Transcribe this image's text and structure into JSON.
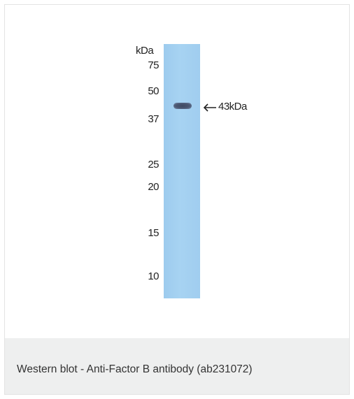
{
  "figure": {
    "unit_label": "kDa",
    "markers": [
      "75",
      "50",
      "37",
      "25",
      "20",
      "15",
      "10"
    ],
    "band_label": "43kDa"
  },
  "caption": {
    "text": "Western blot - Anti-Factor B antibody (ab231072)"
  },
  "colors": {
    "lane": "#a3cff0",
    "band": "#46516b",
    "caption_bg": "#eeefef",
    "border": "#e3e3e3"
  },
  "icons": {
    "band_pointer": "left-arrow-icon"
  }
}
